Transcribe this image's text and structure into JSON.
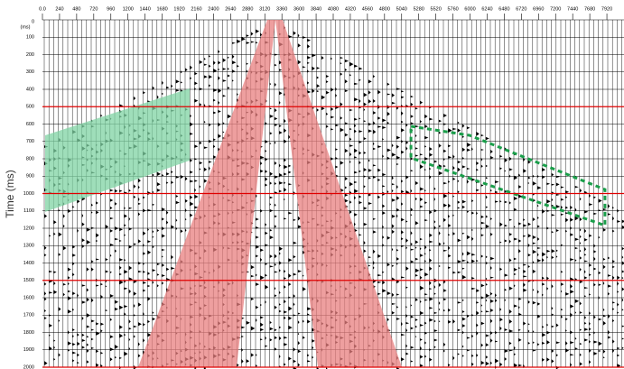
{
  "chart_data": {
    "type": "seismic",
    "y_label": "Time (ms)",
    "y_unit_label": "(ms)",
    "xlim": [
      0,
      8160
    ],
    "ylim": [
      0,
      2000
    ],
    "y_inverted": true,
    "xticks": [
      {
        "value": 0,
        "label": "0.0"
      },
      240,
      480,
      720,
      960,
      1200,
      1440,
      1680,
      1920,
      2160,
      2400,
      2640,
      2880,
      3120,
      3360,
      3600,
      3840,
      4080,
      4320,
      4560,
      4800,
      5040,
      5280,
      5520,
      5760,
      6000,
      6240,
      6480,
      6720,
      6960,
      7200,
      7440,
      7680,
      7920
    ],
    "yticks": [
      0,
      100,
      200,
      300,
      400,
      500,
      600,
      700,
      800,
      900,
      1000,
      1100,
      1200,
      1300,
      1400,
      1500,
      1600,
      1700,
      1800,
      1900,
      2000
    ],
    "grid": true,
    "guide_lines": {
      "color": "#e00000",
      "values": [
        500,
        1000,
        1500,
        2000
      ]
    },
    "zones": [
      {
        "color": "#e87f7f",
        "style": "solid",
        "points": [
          [
            3155,
            0
          ],
          [
            3269,
            0
          ],
          [
            2724,
            2000
          ],
          [
            1343,
            2000
          ]
        ]
      },
      {
        "color": "#e87f7f",
        "style": "solid",
        "points": [
          [
            3269,
            0
          ],
          [
            3370,
            0
          ],
          [
            5043,
            2000
          ],
          [
            3865,
            2000
          ]
        ]
      },
      {
        "color": "#7fd3a3",
        "style": "solid",
        "points": [
          [
            38,
            665
          ],
          [
            2065,
            395
          ],
          [
            2065,
            810
          ],
          [
            38,
            1106
          ]
        ]
      },
      {
        "color": "#1a9e4a",
        "style": "dashed",
        "points": [
          [
            5171,
            613
          ],
          [
            5994,
            665
          ],
          [
            7893,
            977
          ],
          [
            7893,
            1184
          ],
          [
            5171,
            795
          ]
        ]
      }
    ]
  }
}
